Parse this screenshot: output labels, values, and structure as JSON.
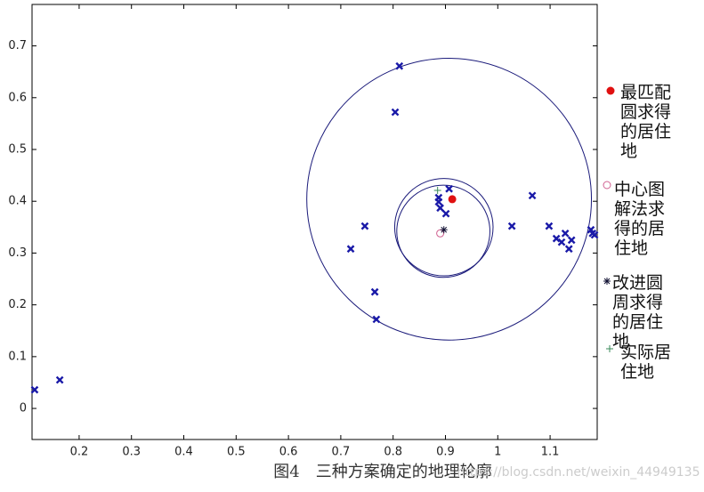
{
  "chart_data": {
    "type": "scatter",
    "caption": "图4　三种方案确定的地理轮廓",
    "watermark": "https://blog.csdn.net/weixin_44949135",
    "xlim": [
      0.11,
      1.19
    ],
    "ylim": [
      -0.06,
      0.78
    ],
    "xticks": [
      0.2,
      0.3,
      0.4,
      0.5,
      0.6,
      0.7,
      0.8,
      0.9,
      1,
      1.1
    ],
    "yticks": [
      0,
      0.1,
      0.2,
      0.3,
      0.4,
      0.5,
      0.6,
      0.7
    ],
    "circles": [
      {
        "color": "#1a1a7a",
        "cx": 0.907,
        "cy": 0.404,
        "r": 0.272
      },
      {
        "color": "#1a1a7a",
        "cx": 0.897,
        "cy": 0.35,
        "r": 0.094
      },
      {
        "color": "#1a1a7a",
        "cx": 0.896,
        "cy": 0.342,
        "r": 0.089
      }
    ],
    "series": [
      {
        "marker": "x",
        "color": "#1a1aa8",
        "x": [
          0.115,
          0.163,
          0.719,
          0.746,
          0.765,
          0.768,
          0.804,
          0.812,
          0.887,
          0.887,
          0.89,
          0.901,
          0.907,
          1.027,
          1.066,
          1.098,
          1.112,
          1.122,
          1.129,
          1.136,
          1.141,
          1.178,
          1.181,
          1.185
        ],
        "values": [
          0.036,
          0.055,
          0.308,
          0.352,
          0.225,
          0.172,
          0.572,
          0.661,
          0.407,
          0.399,
          0.387,
          0.376,
          0.424,
          0.352,
          0.411,
          0.352,
          0.328,
          0.321,
          0.338,
          0.308,
          0.325,
          0.345,
          0.338,
          0.335
        ]
      },
      {
        "name": "最匹配圆求得的居住地",
        "marker": "dot",
        "color": "#e01010",
        "x": [
          0.913
        ],
        "values": [
          0.404
        ]
      },
      {
        "name": "中心图解法求得的居住地",
        "marker": "circle",
        "color": "#d06090",
        "x": [
          0.89
        ],
        "values": [
          0.338
        ]
      },
      {
        "name": "改进圆周求得的居住地",
        "marker": "star",
        "color": "#111133",
        "x": [
          0.897
        ],
        "values": [
          0.345
        ]
      },
      {
        "name": "实际居住地",
        "marker": "plus",
        "color": "#3a8a5a",
        "x": [
          0.885
        ],
        "values": [
          0.421
        ]
      }
    ]
  }
}
